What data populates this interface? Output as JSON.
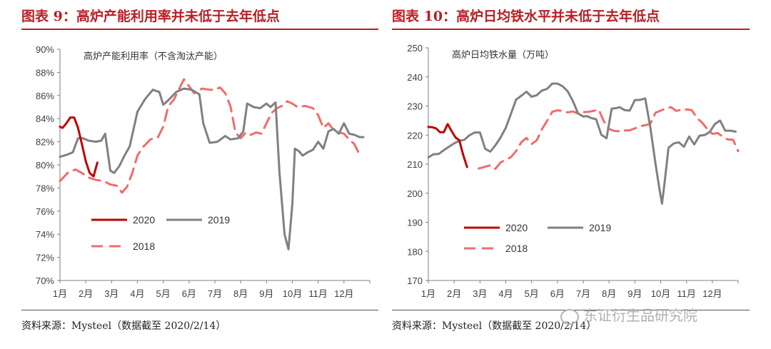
{
  "colors": {
    "title": "#b91f24",
    "series_2020": "#c00000",
    "series_2019": "#808080",
    "series_2018": "#f26b6b"
  },
  "months": [
    "1月",
    "2月",
    "3月",
    "4月",
    "5月",
    "6月",
    "7月",
    "8月",
    "9月",
    "10月",
    "11月",
    "12月"
  ],
  "left_panel": {
    "title": "图表 9：高炉产能利用率并未低于去年低点",
    "chart_label": "高炉产能利用率（不含淘汰产能）",
    "source": "资料来源：Mysteel（数据截至 2020/2/14）",
    "yticks": [
      "70%",
      "72%",
      "74%",
      "76%",
      "78%",
      "80%",
      "82%",
      "84%",
      "86%",
      "88%",
      "90%"
    ]
  },
  "right_panel": {
    "title": "图表 10：高炉日均铁水平并未低于去年低点",
    "chart_label": "高炉日均铁水量（万吨）",
    "source": "资料来源：Mysteel（数据截至 2020/2/14）",
    "yticks": [
      "170",
      "180",
      "190",
      "200",
      "210",
      "220",
      "230",
      "240",
      "250"
    ]
  },
  "legend": {
    "s2020": "2020",
    "s2019": "2019",
    "s2018": "2018"
  },
  "watermark": "东证衍生品研究院",
  "chart_data": [
    {
      "type": "line",
      "title": "高炉产能利用率（不含淘汰产能）",
      "xlabel": "",
      "ylabel": "",
      "categories": [
        "1月",
        "2月",
        "3月",
        "4月",
        "5月",
        "6月",
        "7月",
        "8月",
        "9月",
        "10月",
        "11月",
        "12月"
      ],
      "ylim": [
        70,
        90
      ],
      "grid": false,
      "legend_position": "bottom-left",
      "series": [
        {
          "name": "2020",
          "x": [
            1.0,
            1.1,
            1.25,
            1.4,
            1.55,
            1.7,
            1.85,
            2.0,
            2.15,
            2.3,
            2.45
          ],
          "values": [
            83.3,
            83.2,
            83.6,
            84.1,
            84.1,
            83.2,
            81.8,
            80.3,
            79.3,
            79.0,
            80.2
          ]
        },
        {
          "name": "2019",
          "x": [
            1.0,
            1.3,
            1.5,
            1.7,
            1.9,
            2.1,
            2.4,
            2.6,
            2.75,
            2.95,
            3.1,
            3.3,
            3.5,
            3.7,
            4.0,
            4.3,
            4.6,
            4.85,
            5.0,
            5.2,
            5.5,
            5.8,
            6.1,
            6.4,
            6.55,
            6.8,
            7.1,
            7.4,
            7.6,
            7.9,
            8.1,
            8.25,
            8.5,
            8.75,
            9.0,
            9.15,
            9.35,
            9.5,
            9.7,
            9.85,
            10.0,
            10.1,
            10.25,
            10.4,
            10.6,
            10.8,
            11.0,
            11.2,
            11.4,
            11.6,
            11.8,
            12.0,
            12.2,
            12.4,
            12.6,
            12.75
          ],
          "values": [
            80.7,
            80.9,
            81.1,
            82.3,
            82.3,
            82.1,
            82.0,
            82.1,
            82.7,
            79.5,
            79.3,
            79.9,
            80.8,
            81.6,
            84.6,
            85.7,
            86.5,
            86.3,
            85.2,
            85.6,
            86.3,
            86.6,
            86.5,
            86.1,
            83.6,
            81.9,
            82.0,
            82.5,
            82.2,
            82.3,
            82.9,
            85.3,
            85.0,
            84.9,
            85.3,
            85.0,
            85.4,
            79.4,
            74.0,
            72.7,
            76.6,
            81.4,
            81.2,
            80.8,
            81.1,
            81.3,
            82.0,
            81.4,
            82.9,
            83.1,
            82.7,
            83.6,
            82.7,
            82.6,
            82.4,
            82.4
          ]
        },
        {
          "name": "2018",
          "x": [
            1.0,
            1.3,
            1.6,
            1.85,
            2.1,
            2.4,
            2.7,
            2.95,
            3.2,
            3.4,
            3.6,
            3.8,
            4.0,
            4.2,
            4.5,
            4.8,
            5.0,
            5.2,
            5.4,
            5.6,
            5.8,
            6.0,
            6.2,
            6.5,
            6.8,
            7.0,
            7.2,
            7.4,
            7.6,
            7.8,
            8.0,
            8.2,
            8.4,
            8.6,
            8.8,
            9.0,
            9.2,
            9.4,
            9.6,
            9.8,
            10.0,
            10.2,
            10.5,
            10.8,
            11.0,
            11.2,
            11.4,
            11.6,
            11.8,
            12.0,
            12.2,
            12.4,
            12.6
          ],
          "values": [
            78.6,
            79.3,
            79.6,
            79.3,
            78.9,
            78.7,
            78.6,
            78.3,
            78.2,
            77.6,
            78.1,
            79.3,
            80.8,
            81.5,
            82.2,
            82.4,
            83.3,
            85.1,
            85.6,
            86.5,
            87.4,
            86.8,
            86.2,
            86.6,
            86.5,
            86.5,
            86.7,
            86.2,
            85.1,
            82.8,
            82.3,
            82.8,
            82.6,
            82.8,
            82.7,
            83.6,
            84.5,
            84.9,
            85.1,
            85.5,
            85.3,
            85.0,
            85.1,
            84.9,
            84.3,
            83.2,
            83.6,
            83.0,
            82.8,
            82.7,
            82.2,
            81.8,
            80.9
          ]
        }
      ]
    },
    {
      "type": "line",
      "title": "高炉日均铁水量（万吨）",
      "xlabel": "",
      "ylabel": "",
      "categories": [
        "1月",
        "2月",
        "3月",
        "4月",
        "5月",
        "6月",
        "7月",
        "8月",
        "9月",
        "10月",
        "11月",
        "12月"
      ],
      "ylim": [
        170,
        250
      ],
      "grid": false,
      "legend_position": "bottom-left",
      "series": [
        {
          "name": "2020",
          "x": [
            1.0,
            1.15,
            1.3,
            1.45,
            1.6,
            1.75,
            1.9,
            2.05,
            2.2,
            2.35,
            2.5
          ],
          "values": [
            222.8,
            222.7,
            222.3,
            221.0,
            221.0,
            223.8,
            221.4,
            219.2,
            218.2,
            213.2,
            209.0
          ]
        },
        {
          "name": "2019",
          "x": [
            1.0,
            1.2,
            1.4,
            1.6,
            1.8,
            2.0,
            2.2,
            2.4,
            2.6,
            2.8,
            3.0,
            3.2,
            3.4,
            3.6,
            3.8,
            4.0,
            4.2,
            4.4,
            4.6,
            4.8,
            5.0,
            5.2,
            5.4,
            5.6,
            5.8,
            6.0,
            6.2,
            6.4,
            6.6,
            6.8,
            7.0,
            7.15,
            7.3,
            7.5,
            7.7,
            7.9,
            8.1,
            8.3,
            8.4,
            8.6,
            8.8,
            9.0,
            9.2,
            9.4,
            9.6,
            9.8,
            9.95,
            10.05,
            10.15,
            10.3,
            10.5,
            10.7,
            10.9,
            11.1,
            11.3,
            11.5,
            11.7,
            11.9,
            12.1,
            12.3,
            12.5,
            12.7,
            12.9
          ],
          "values": [
            212.3,
            213.4,
            213.5,
            214.8,
            216.0,
            217.2,
            218.0,
            218.4,
            220.0,
            220.9,
            220.9,
            215.3,
            214.3,
            216.5,
            219.2,
            222.5,
            227.3,
            232.2,
            233.5,
            234.9,
            233.2,
            233.7,
            235.3,
            235.9,
            237.7,
            237.7,
            236.8,
            235.0,
            231.7,
            227.4,
            226.4,
            226.5,
            225.9,
            225.4,
            220.1,
            218.9,
            229.1,
            229.3,
            229.6,
            228.6,
            228.4,
            232.0,
            232.1,
            232.6,
            222.6,
            210.0,
            201.5,
            196.4,
            203.5,
            215.6,
            217.1,
            217.5,
            216.0,
            219.5,
            216.8,
            219.8,
            220.0,
            221.1,
            223.8,
            225.0,
            221.5,
            221.5,
            221.2
          ]
        },
        {
          "name": "2018",
          "x": [
            2.95,
            3.2,
            3.4,
            3.6,
            3.8,
            4.0,
            4.2,
            4.4,
            4.6,
            4.8,
            5.0,
            5.2,
            5.4,
            5.6,
            5.8,
            6.0,
            6.2,
            6.4,
            6.6,
            6.8,
            7.0,
            7.2,
            7.4,
            7.6,
            7.8,
            8.0,
            8.2,
            8.4,
            8.6,
            8.8,
            9.0,
            9.2,
            9.4,
            9.6,
            9.8,
            10.0,
            10.2,
            10.4,
            10.6,
            10.8,
            11.0,
            11.2,
            11.4,
            11.6,
            11.8,
            12.0,
            12.2,
            12.4,
            12.6,
            12.8,
            13.0
          ],
          "values": [
            208.5,
            209.1,
            209.6,
            208.4,
            210.6,
            211.5,
            212.4,
            214.5,
            217.5,
            219.0,
            216.9,
            218.2,
            222.0,
            224.9,
            228.0,
            228.5,
            228.3,
            227.8,
            228.1,
            227.4,
            227.9,
            228.0,
            228.3,
            228.8,
            224.7,
            222.1,
            221.4,
            221.3,
            221.6,
            221.6,
            222.3,
            223.0,
            223.4,
            223.9,
            227.7,
            228.4,
            229.1,
            229.6,
            228.3,
            228.7,
            228.8,
            228.6,
            225.9,
            224.3,
            222.1,
            220.4,
            220.7,
            219.5,
            218.5,
            218.4,
            214.5
          ]
        }
      ]
    }
  ]
}
